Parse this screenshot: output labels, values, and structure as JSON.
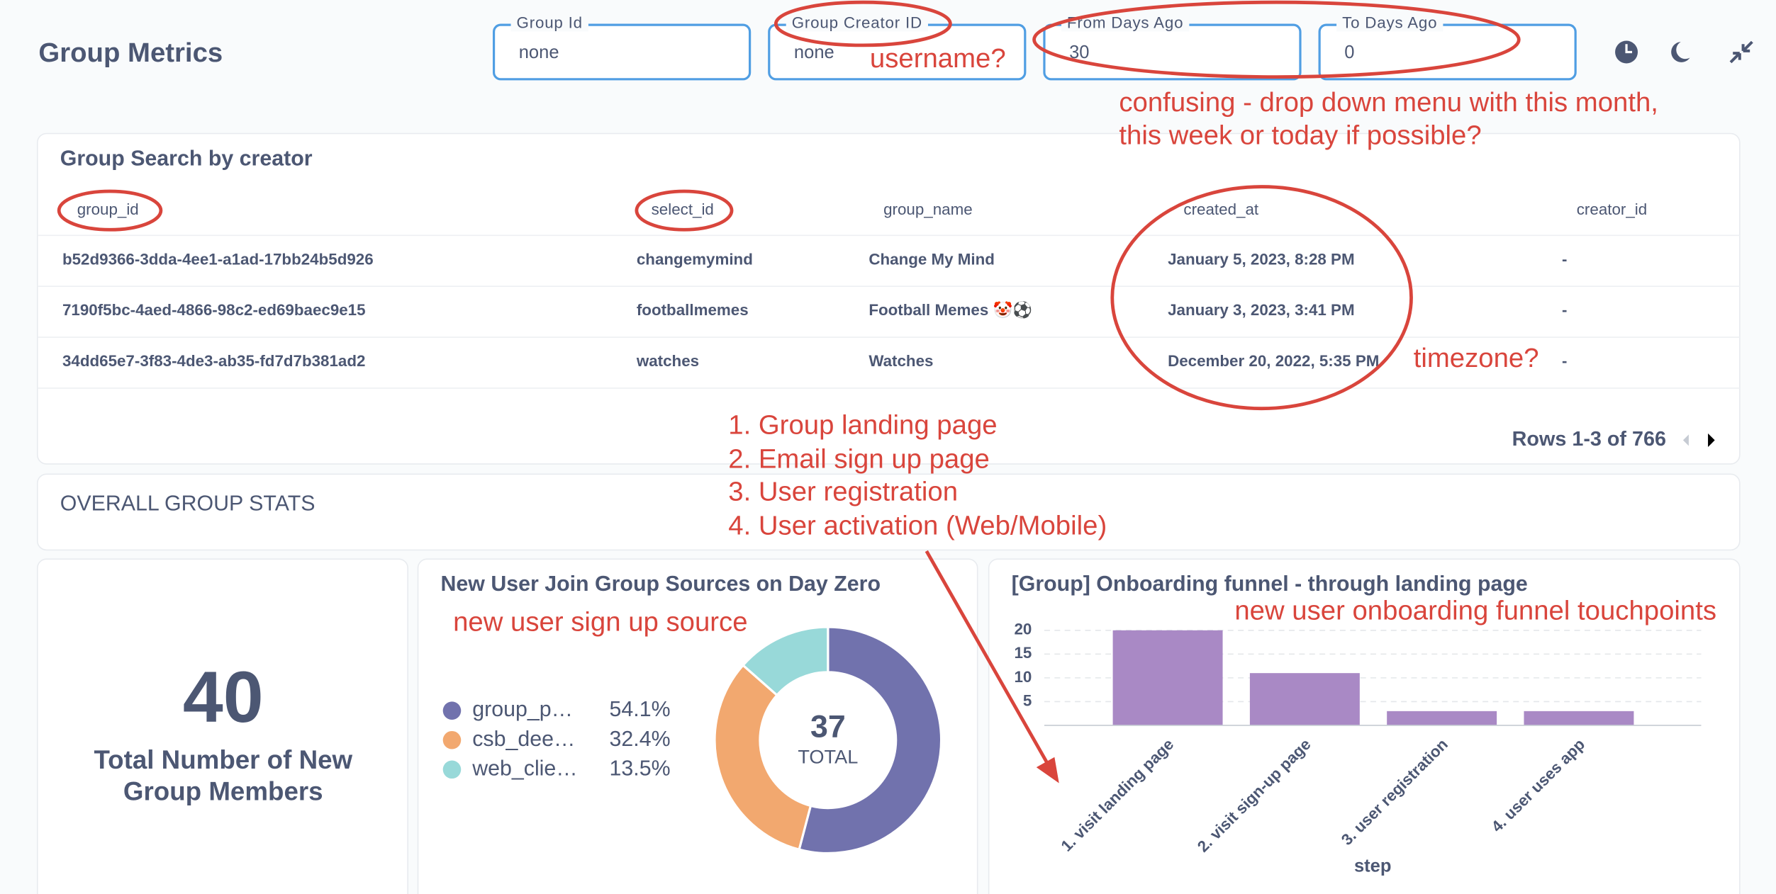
{
  "header": {
    "title": "Group Metrics"
  },
  "filters": [
    {
      "label": "Group Id",
      "value": "none"
    },
    {
      "label": "Group Creator ID",
      "value": "none"
    },
    {
      "label": "From Days Ago",
      "value": "30"
    },
    {
      "label": "To Days Ago",
      "value": "0"
    }
  ],
  "table": {
    "title": "Group Search by creator",
    "columns": [
      "group_id",
      "select_id",
      "group_name",
      "created_at",
      "creator_id"
    ],
    "rows": [
      [
        "b52d9366-3dda-4ee1-a1ad-17bb24b5d926",
        "changemymind",
        "Change My Mind",
        "January 5, 2023, 8:28 PM",
        "-"
      ],
      [
        "7190f5bc-4aed-4866-98c2-ed69baec9e15",
        "footballmemes",
        "Football Memes 🤡⚽",
        "January 3, 2023, 3:41 PM",
        "-"
      ],
      [
        "34dd65e7-3f83-4de3-ab35-fd7d7b381ad2",
        "watches",
        "Watches",
        "December 20, 2022, 5:35 PM",
        "-"
      ]
    ],
    "pagination": "Rows 1-3 of 766"
  },
  "section": {
    "title": "OVERALL GROUP STATS"
  },
  "stat": {
    "value": "40",
    "label": [
      "Total Number of New",
      "Group Members"
    ]
  },
  "chart_data": [
    {
      "type": "pie",
      "title": "New User Join Group Sources on Day Zero",
      "categories": [
        "group_p…",
        "csb_dee…",
        "web_clie…"
      ],
      "values": [
        54.1,
        32.4,
        13.5
      ],
      "value_labels": [
        "54.1%",
        "32.4%",
        "13.5%"
      ],
      "colors": [
        "#7172ad",
        "#f2a86f",
        "#98d9d9"
      ],
      "total": "37",
      "total_label": "TOTAL"
    },
    {
      "type": "bar",
      "title": "[Group] Onboarding funnel - through landing page",
      "categories": [
        "1. visit landing page",
        "2. visit sign-up page",
        "3. user registration",
        "4. user uses app"
      ],
      "values": [
        20,
        11,
        3,
        3
      ],
      "color": "#a989c5",
      "ylim": [
        0,
        20
      ],
      "yticks": [
        5,
        10,
        15,
        20
      ],
      "xlabel": "step",
      "grid": true
    }
  ],
  "annotations": {
    "username": "username?",
    "dates": [
      "confusing - drop down menu with this month,",
      "this week or today if possible?"
    ],
    "timezone": "timezone?",
    "steps": [
      "1. Group landing page",
      "2. Email sign up page",
      "3. User registration",
      "4. User activation (Web/Mobile)"
    ],
    "source": "new user sign up source",
    "funnel": "new user onboarding funnel touchpoints"
  }
}
